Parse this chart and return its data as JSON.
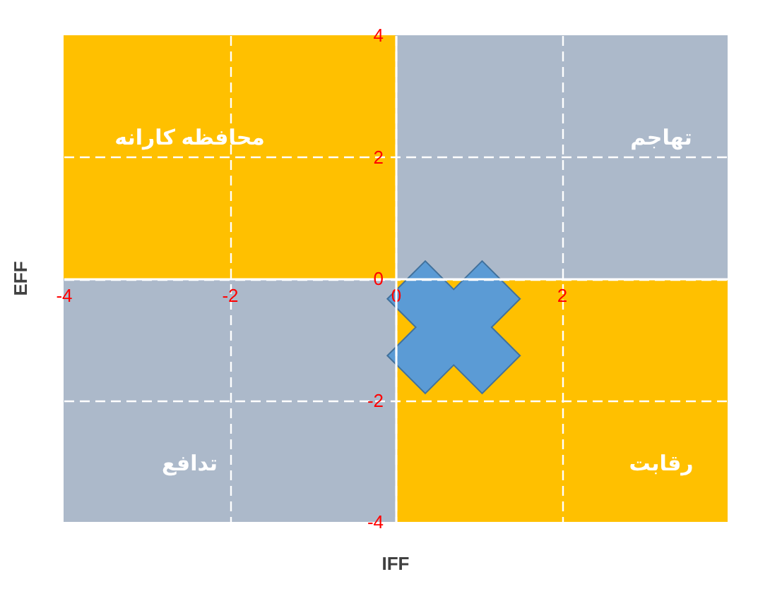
{
  "chart_data": {
    "type": "scatter",
    "xlabel": "IFF",
    "ylabel": "EFF",
    "xlim": [
      -4,
      4
    ],
    "ylim": [
      -4,
      4
    ],
    "xticks": [
      -4,
      -2,
      0,
      2
    ],
    "yticks": [
      -4,
      -2,
      0,
      2,
      4
    ],
    "grid": true,
    "series": [
      {
        "type": "area",
        "color": "#ffc000",
        "x": [
          -4,
          0
        ],
        "values": [
          4,
          4
        ]
      },
      {
        "type": "area",
        "color": "#acb9ca",
        "x": [
          0,
          4
        ],
        "values": [
          4,
          4
        ]
      },
      {
        "type": "area",
        "color": "#acb9ca",
        "x": [
          -4,
          0
        ],
        "values": [
          -4,
          -4
        ]
      },
      {
        "type": "area",
        "color": "#ffc000",
        "x": [
          0,
          4
        ],
        "values": [
          -4,
          -4
        ]
      },
      {
        "color": "#5b9bd5",
        "marker": "cross",
        "x": [
          0.7
        ],
        "values": [
          -0.8
        ]
      }
    ],
    "annotations": [
      "محافظه کارانه",
      "تهاجم",
      "تدافع",
      "رقابت"
    ]
  }
}
